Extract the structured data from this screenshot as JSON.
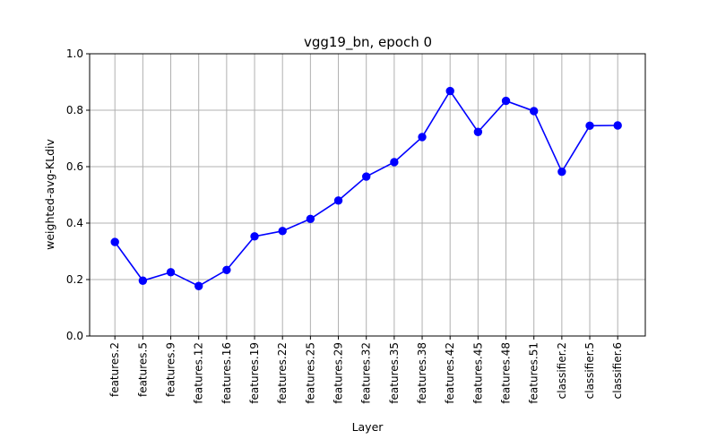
{
  "chart_data": {
    "type": "line",
    "title": "vgg19_bn, epoch 0",
    "xlabel": "Layer",
    "ylabel": "weighted-avg-KLdiv",
    "ylim": [
      0.0,
      1.0
    ],
    "yticks": [
      "0.0",
      "0.2",
      "0.4",
      "0.6",
      "0.8",
      "1.0"
    ],
    "grid": true,
    "categories": [
      "features.2",
      "features.5",
      "features.9",
      "features.12",
      "features.16",
      "features.19",
      "features.22",
      "features.25",
      "features.29",
      "features.32",
      "features.35",
      "features.38",
      "features.42",
      "features.45",
      "features.48",
      "features.51",
      "classifier.2",
      "classifier.5",
      "classifier.6"
    ],
    "series": [
      {
        "color": "#0000ff",
        "values": [
          0.333,
          0.196,
          0.226,
          0.177,
          0.234,
          0.353,
          0.372,
          0.415,
          0.48,
          0.565,
          0.616,
          0.705,
          0.868,
          0.723,
          0.833,
          0.797,
          0.582,
          0.745,
          0.746
        ]
      }
    ]
  }
}
